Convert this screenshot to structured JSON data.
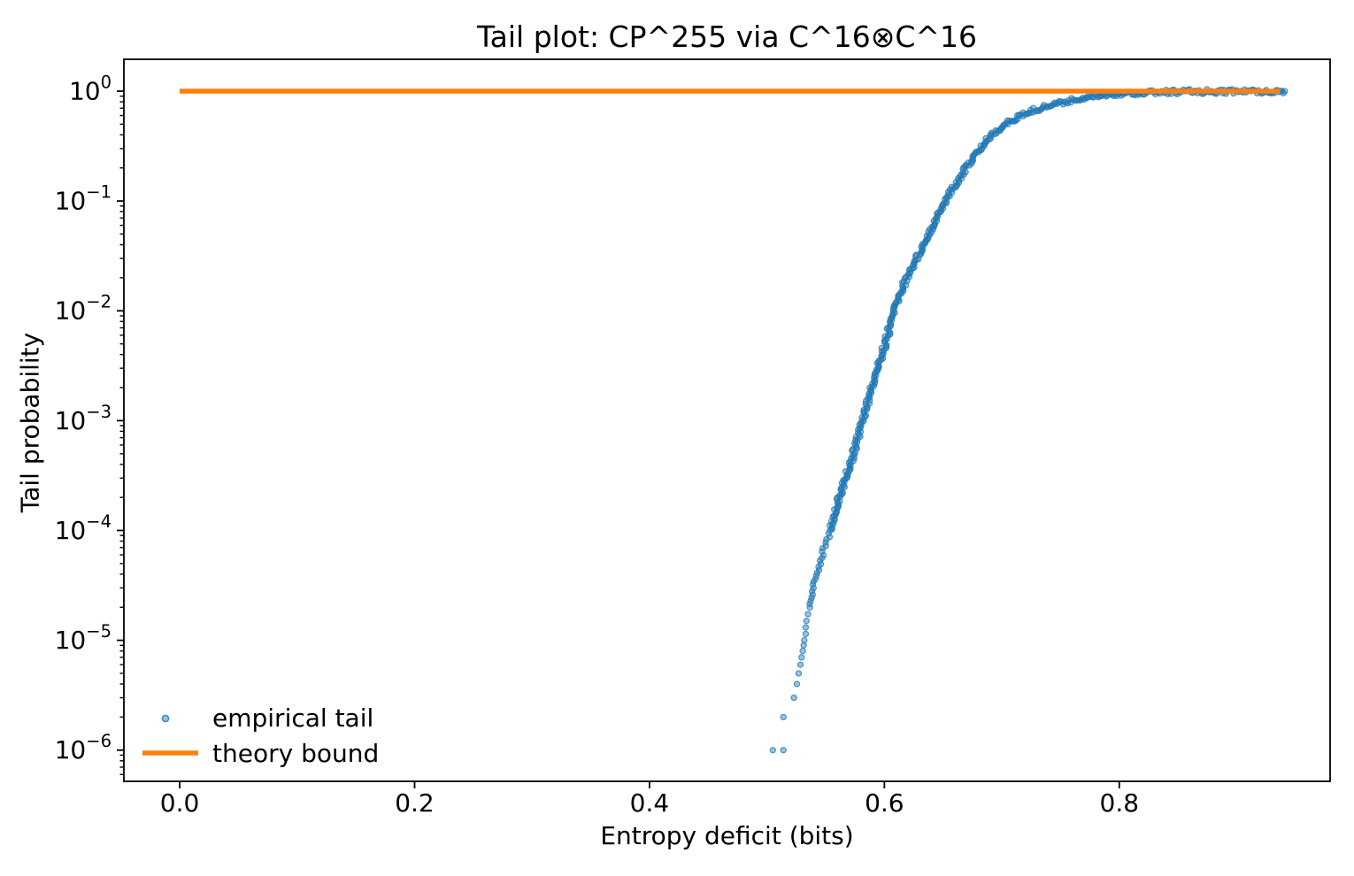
{
  "chart_data": {
    "type": "scatter",
    "title": "Tail plot: CP^255 via C^16⊗C^16",
    "xlabel": "Entropy deficit (bits)",
    "ylabel": "Tail probability",
    "x_scale": "linear",
    "y_scale": "log",
    "xlim": [
      -0.0475,
      0.9795
    ],
    "ylim": [
      5.2e-07,
      1.95
    ],
    "x_ticks": [
      0.0,
      0.2,
      0.4,
      0.6,
      0.8
    ],
    "x_tick_labels": [
      "0.0",
      "0.2",
      "0.4",
      "0.6",
      "0.8"
    ],
    "y_tick_exponents": [
      0,
      -1,
      -2,
      -3,
      -4,
      -5,
      -6
    ],
    "grid": false,
    "axis_color": "#000000",
    "legend": {
      "position": "lower left",
      "frame": false,
      "entries": [
        {
          "label": "empirical tail",
          "type": "marker",
          "color": "#1f77b4"
        },
        {
          "label": "theory bound",
          "type": "line",
          "color": "#ff7f0e"
        }
      ]
    },
    "series": [
      {
        "name": "empirical tail",
        "type": "scatter",
        "color": "#1f77b4",
        "alpha": 0.5,
        "marker": "circle",
        "low_tail_points": [
          [
            0.505,
            1e-06
          ],
          [
            0.514,
            1e-06
          ],
          [
            0.514,
            2e-06
          ],
          [
            0.523,
            3e-06
          ],
          [
            0.5255,
            4e-06
          ],
          [
            0.527,
            5e-06
          ],
          [
            0.5285,
            6e-06
          ],
          [
            0.5295,
            7e-06
          ],
          [
            0.5305,
            8e-06
          ],
          [
            0.5313,
            9e-06
          ]
        ],
        "curve_points": [
          [
            0.532,
            1e-05
          ],
          [
            0.534,
            1.5e-05
          ],
          [
            0.536,
            2e-05
          ],
          [
            0.54,
            3.2e-05
          ],
          [
            0.547,
            6e-05
          ],
          [
            0.554,
            0.0001
          ],
          [
            0.562,
            0.00021
          ],
          [
            0.568,
            0.00032
          ],
          [
            0.575,
            0.00056
          ],
          [
            0.581,
            0.001
          ],
          [
            0.588,
            0.0018
          ],
          [
            0.595,
            0.0032
          ],
          [
            0.602,
            0.0056
          ],
          [
            0.608,
            0.01
          ],
          [
            0.618,
            0.019
          ],
          [
            0.628,
            0.031
          ],
          [
            0.641,
            0.06
          ],
          [
            0.655,
            0.115
          ],
          [
            0.672,
            0.22
          ],
          [
            0.691,
            0.4
          ],
          [
            0.708,
            0.54
          ],
          [
            0.726,
            0.665
          ],
          [
            0.744,
            0.76
          ],
          [
            0.761,
            0.83
          ],
          [
            0.774,
            0.89
          ],
          [
            0.786,
            0.93
          ],
          [
            0.803,
            0.956
          ],
          [
            0.82,
            0.97
          ],
          [
            0.84,
            0.981
          ],
          [
            0.86,
            0.988
          ],
          [
            0.88,
            0.992
          ],
          [
            0.9,
            0.995
          ],
          [
            0.92,
            0.997
          ],
          [
            0.941,
            0.9985
          ]
        ]
      },
      {
        "name": "theory bound",
        "type": "line",
        "color": "#ff7f0e",
        "linewidth": 5.5,
        "y": 1.0,
        "x_range": [
          0.0,
          0.937
        ]
      }
    ]
  }
}
